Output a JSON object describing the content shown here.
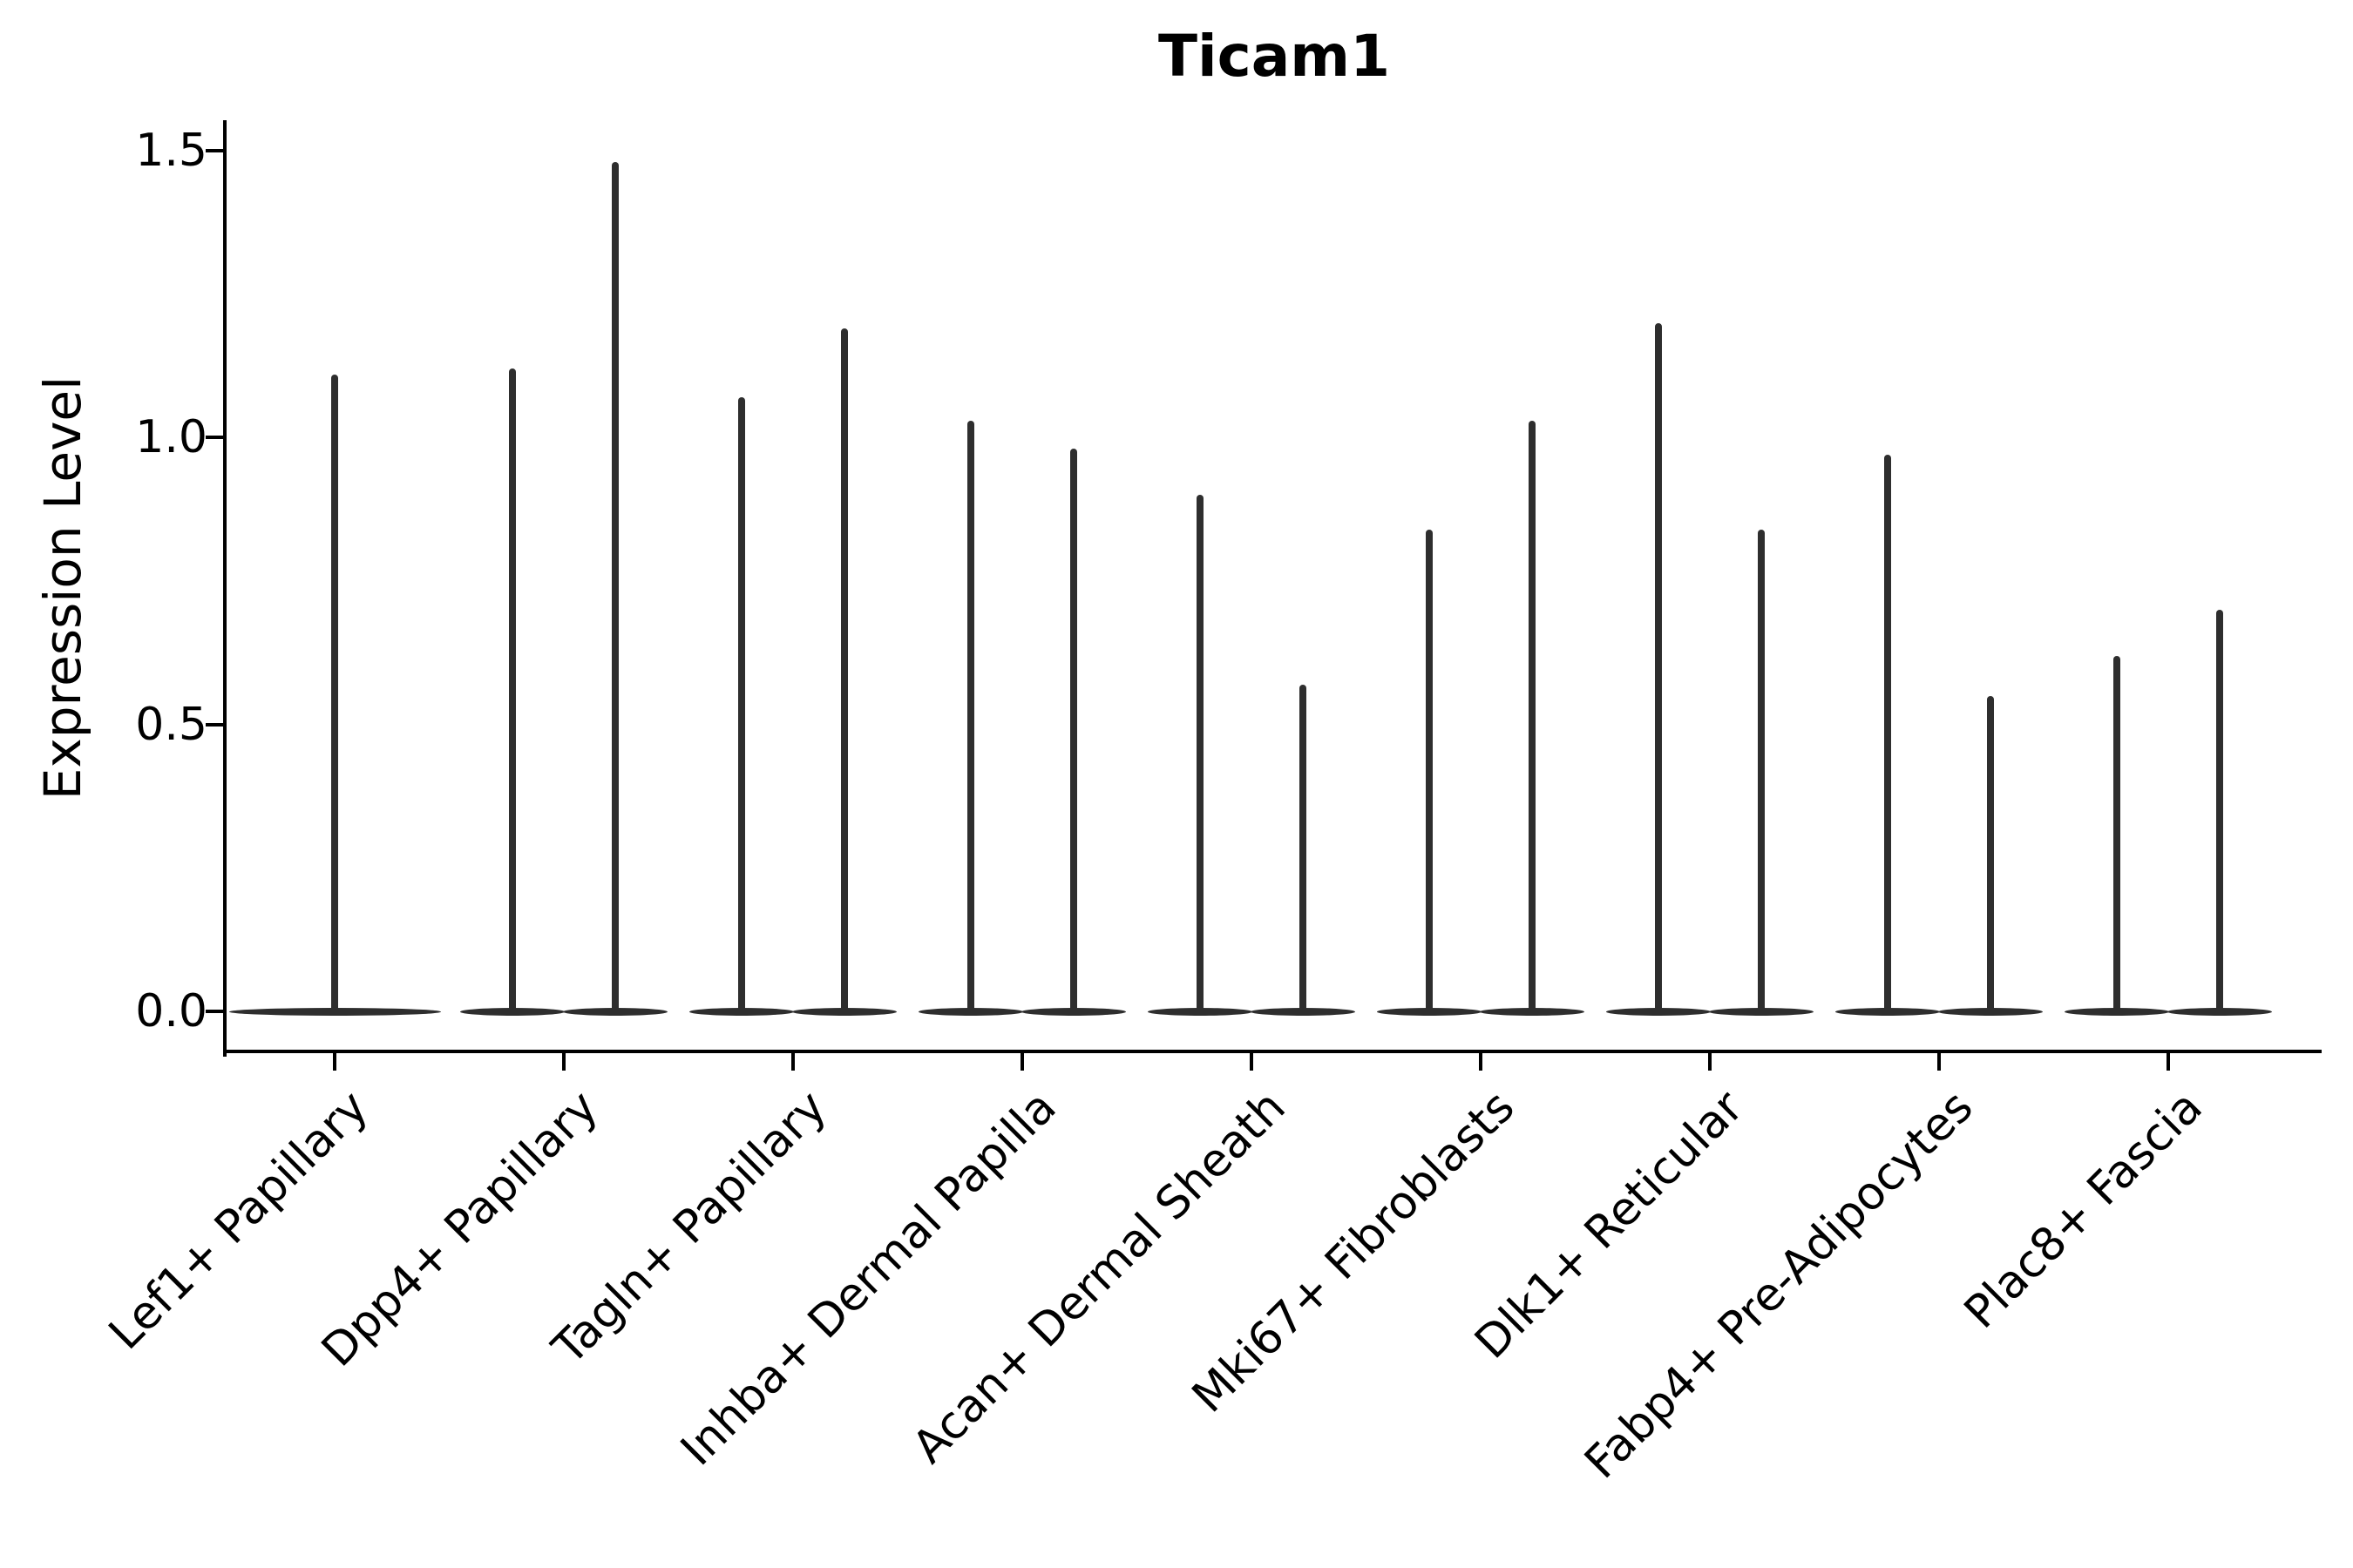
{
  "chart_data": {
    "type": "violin",
    "title": "Ticam1",
    "ylabel": "Expression Level",
    "xlabel": "",
    "grid": false,
    "legend_position": "none",
    "ylim": [
      -0.073,
      1.55
    ],
    "ytick_labels": [
      "0.0",
      "0.5",
      "1.0",
      "1.5"
    ],
    "ytick_values": [
      0.0,
      0.5,
      1.0,
      1.5
    ],
    "categories": [
      "Lef1+ Papillary",
      "Dpp4+ Papillary",
      "Tagln+ Papillary",
      "Inhba+ Dermal Papilla",
      "Acan+ Dermal Sheath",
      "Mki67+ Fibroblasts",
      "Dlk1+ Reticular",
      "Fabp4+ Pre-Adipocytes",
      "Plac8+ Fascia"
    ],
    "series": [
      {
        "category": "Lef1+ Papillary",
        "violins": [
          {
            "position": "center",
            "min": 0,
            "max": 1.11
          }
        ]
      },
      {
        "category": "Dpp4+ Papillary",
        "violins": [
          {
            "position": "left",
            "min": 0,
            "max": 1.12
          },
          {
            "position": "right",
            "min": 0,
            "max": 1.48
          }
        ]
      },
      {
        "category": "Tagln+ Papillary",
        "violins": [
          {
            "position": "left",
            "min": 0,
            "max": 1.07
          },
          {
            "position": "right",
            "min": 0,
            "max": 1.19
          }
        ]
      },
      {
        "category": "Inhba+ Dermal Papilla",
        "violins": [
          {
            "position": "left",
            "min": 0,
            "max": 1.03
          },
          {
            "position": "right",
            "min": 0,
            "max": 0.98
          }
        ]
      },
      {
        "category": "Acan+ Dermal Sheath",
        "violins": [
          {
            "position": "left",
            "min": 0,
            "max": 0.9
          },
          {
            "position": "right",
            "min": 0,
            "max": 0.57
          }
        ]
      },
      {
        "category": "Mki67+ Fibroblasts",
        "violins": [
          {
            "position": "left",
            "min": 0,
            "max": 0.84
          },
          {
            "position": "right",
            "min": 0,
            "max": 1.03
          }
        ]
      },
      {
        "category": "Dlk1+ Reticular",
        "violins": [
          {
            "position": "left",
            "min": 0,
            "max": 1.2
          },
          {
            "position": "right",
            "min": 0,
            "max": 0.84
          }
        ]
      },
      {
        "category": "Fabp4+ Pre-Adipocytes",
        "violins": [
          {
            "position": "left",
            "min": 0,
            "max": 0.97
          },
          {
            "position": "right",
            "min": 0,
            "max": 0.55
          }
        ]
      },
      {
        "category": "Plac8+ Fascia",
        "violins": [
          {
            "position": "left",
            "min": 0,
            "max": 0.62
          },
          {
            "position": "right",
            "min": 0,
            "max": 0.7
          }
        ]
      }
    ],
    "colors": {
      "violin": "#2e2e2e",
      "axis": "#000000",
      "text": "#000000",
      "background": "#ffffff"
    }
  }
}
